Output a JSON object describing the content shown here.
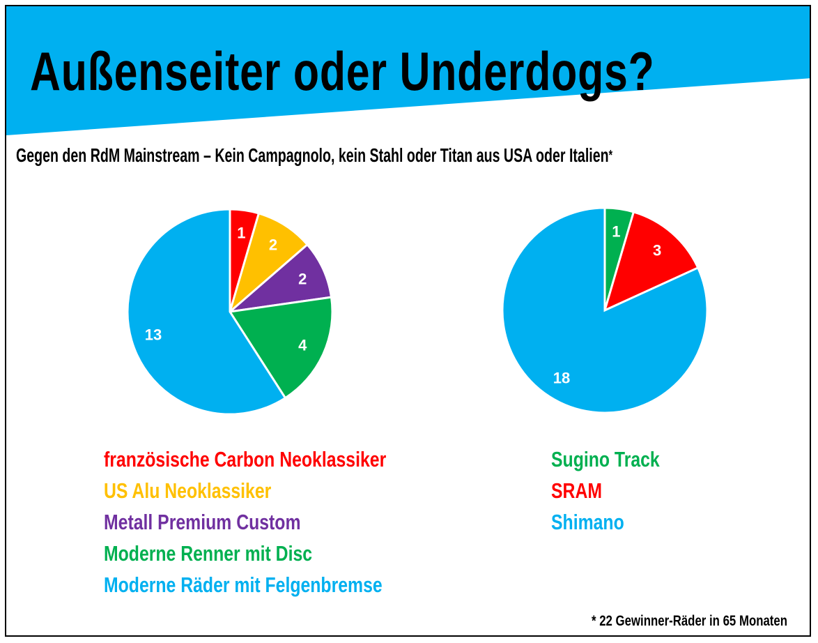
{
  "title": "Außenseiter oder Underdogs?",
  "subtitle": "Gegen den RdM Mainstream – Kein Campagnolo, kein Stahl oder Titan aus USA oder Italien",
  "subtitle_mark": "*",
  "footnote": "* 22 Gewinner-Räder in 65 Monaten",
  "colors": {
    "banner": "#00B0F0"
  },
  "chart_data": [
    {
      "type": "pie",
      "categories": [
        "französische Carbon Neoklassiker",
        "US Alu Neoklassiker",
        "Metall Premium Custom",
        "Moderne Renner mit Disc",
        "Moderne Räder mit Felgenbremse"
      ],
      "values": [
        1,
        2,
        2,
        4,
        13
      ],
      "labels": [
        "1",
        "2",
        "2",
        "4",
        "13"
      ],
      "colors": [
        "#FF0000",
        "#FFC000",
        "#7030A0",
        "#00B050",
        "#00B0F0"
      ],
      "legend": "bottom"
    },
    {
      "type": "pie",
      "categories": [
        "Sugino Track",
        "SRAM",
        "Shimano"
      ],
      "values": [
        1,
        3,
        18
      ],
      "labels": [
        "1",
        "3",
        "18"
      ],
      "colors": [
        "#00B050",
        "#FF0000",
        "#00B0F0"
      ],
      "legend": "bottom"
    }
  ]
}
